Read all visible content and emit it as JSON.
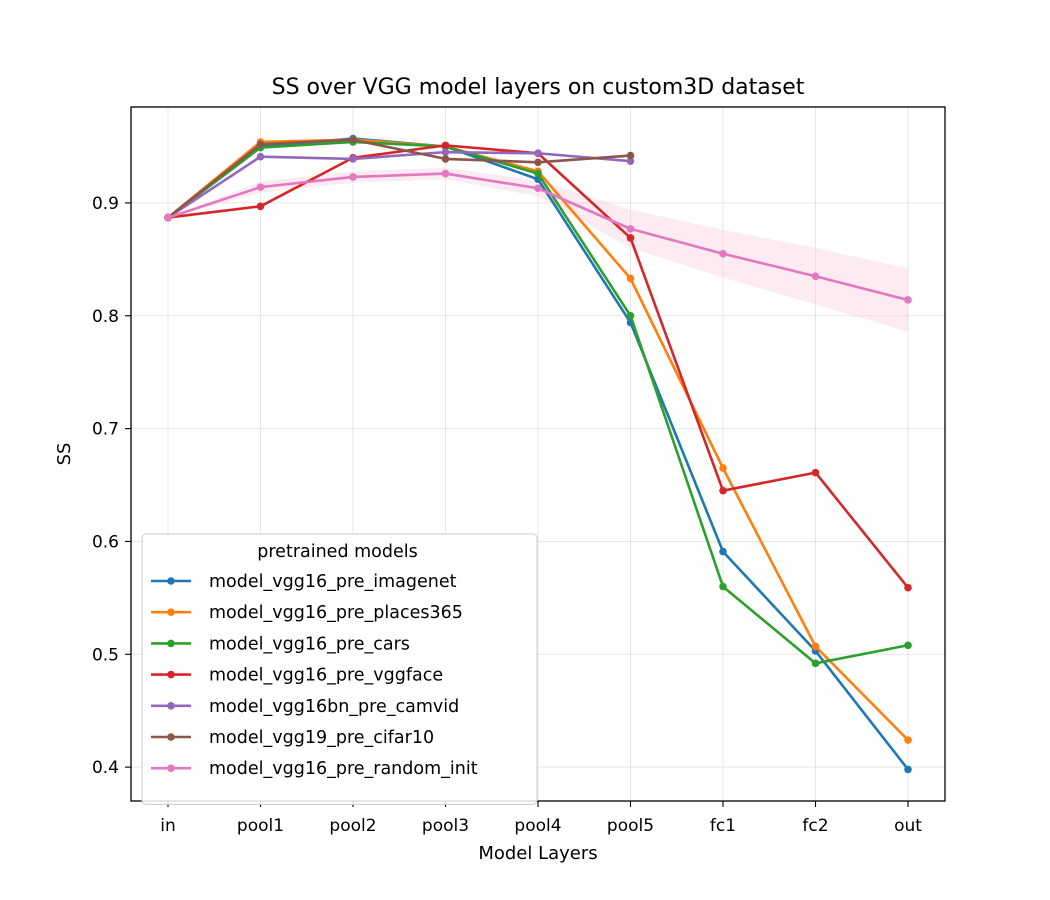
{
  "chart_data": {
    "type": "line",
    "title": "SS over VGG model layers on custom3D dataset",
    "xlabel": "Model Layers",
    "ylabel": "SS",
    "categories": [
      "in",
      "pool1",
      "pool2",
      "pool3",
      "pool4",
      "pool5",
      "fc1",
      "fc2",
      "out"
    ],
    "ylim": [
      0.37,
      0.985
    ],
    "yticks": [
      0.4,
      0.5,
      0.6,
      0.7,
      0.8,
      0.9
    ],
    "ytick_labels": [
      "0.4",
      "0.5",
      "0.6",
      "0.7",
      "0.8",
      "0.9"
    ],
    "grid": true,
    "legend": {
      "title": "pretrained models",
      "placement": "lower-left"
    },
    "series": [
      {
        "name": "model_vgg16_pre_imagenet",
        "color": "#1f77b4",
        "values": [
          0.887,
          0.95,
          0.957,
          0.95,
          0.921,
          0.794,
          0.591,
          0.503,
          0.398
        ]
      },
      {
        "name": "model_vgg16_pre_places365",
        "color": "#ff7f0e",
        "values": [
          0.887,
          0.954,
          0.956,
          0.95,
          0.928,
          0.833,
          0.665,
          0.507,
          0.424
        ]
      },
      {
        "name": "model_vgg16_pre_cars",
        "color": "#2ca02c",
        "values": [
          0.887,
          0.949,
          0.954,
          0.95,
          0.926,
          0.8,
          0.56,
          0.492,
          0.508
        ]
      },
      {
        "name": "model_vgg16_pre_vggface",
        "color": "#d62728",
        "values": [
          0.887,
          0.897,
          0.94,
          0.951,
          0.944,
          0.869,
          0.645,
          0.661,
          0.559
        ]
      },
      {
        "name": "model_vgg16bn_pre_camvid",
        "color": "#9467bd",
        "values": [
          0.887,
          0.941,
          0.939,
          0.945,
          0.944,
          0.937,
          null,
          null,
          null
        ]
      },
      {
        "name": "model_vgg19_pre_cifar10",
        "color": "#8c564b",
        "values": [
          0.887,
          0.952,
          0.956,
          0.939,
          0.936,
          0.942,
          null,
          null,
          null
        ]
      },
      {
        "name": "model_vgg16_pre_random_init",
        "color": "#e377c2",
        "values": [
          0.887,
          0.914,
          0.923,
          0.926,
          0.913,
          0.877,
          0.855,
          0.835,
          0.814
        ],
        "band_lower": [
          0.887,
          0.909,
          0.918,
          0.921,
          0.906,
          0.86,
          0.834,
          0.81,
          0.786
        ],
        "band_upper": [
          0.887,
          0.919,
          0.928,
          0.931,
          0.92,
          0.894,
          0.876,
          0.86,
          0.842
        ],
        "band_color": "#f7c6d6"
      }
    ]
  }
}
